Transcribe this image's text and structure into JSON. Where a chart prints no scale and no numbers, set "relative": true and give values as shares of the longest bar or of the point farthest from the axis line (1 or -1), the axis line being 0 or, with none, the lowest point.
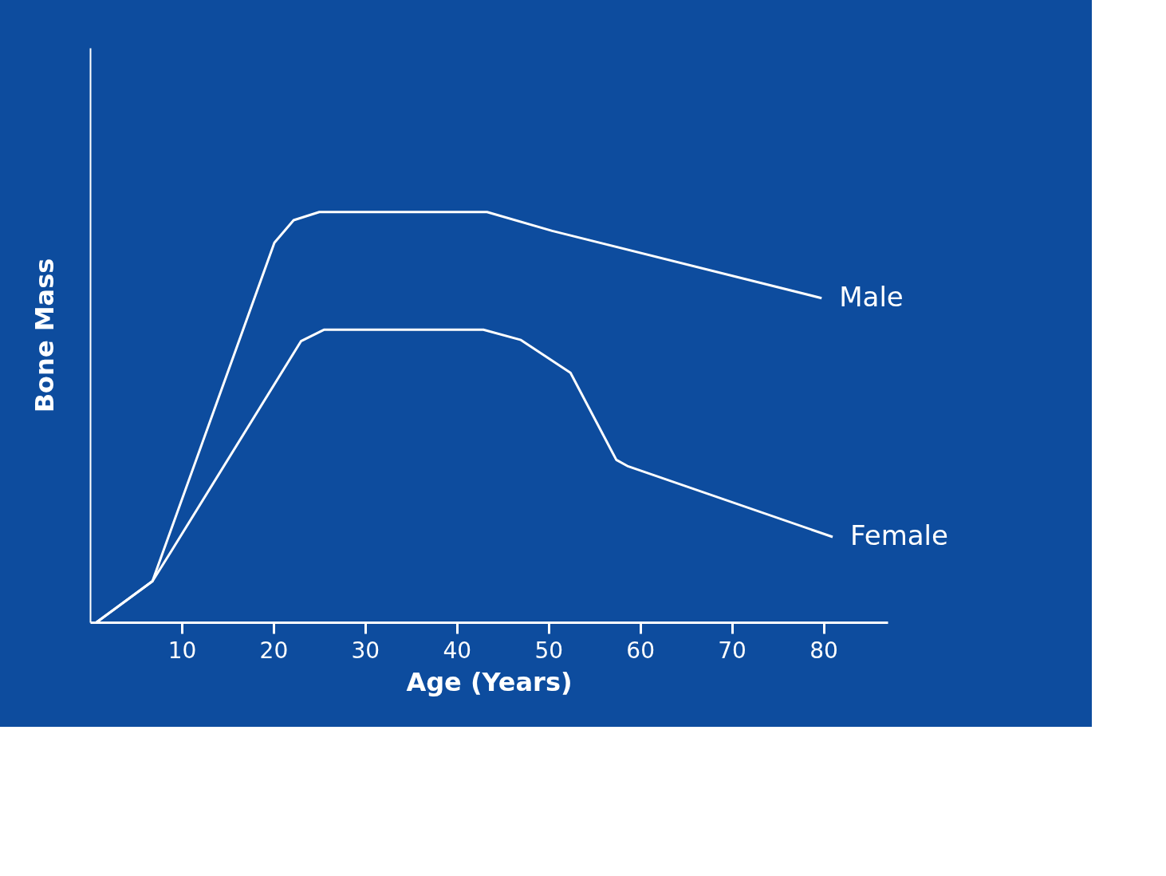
{
  "chart_data": {
    "type": "line",
    "relative": true,
    "xlabel": "Age (Years)",
    "ylabel": "Bone Mass",
    "xlim": [
      0,
      87
    ],
    "xticks": [
      10,
      20,
      30,
      40,
      50,
      60,
      70,
      80
    ],
    "grid": false,
    "legend": false,
    "marker": "none",
    "line_style": "solid",
    "series": [
      {
        "name": "Male",
        "color": "#ffffff",
        "x": [
          0.7,
          6.8,
          20.1,
          22.2,
          25,
          43.3,
          50.4,
          79.8
        ],
        "values": [
          0,
          0.1,
          0.925,
          0.98,
          1.0,
          1.0,
          0.954,
          0.79
        ]
      },
      {
        "name": "Female",
        "color": "#ffffff",
        "x": [
          0.7,
          6.8,
          8.9,
          23,
          25.5,
          42.9,
          47,
          52.4,
          57.4,
          58.6,
          81
        ],
        "values": [
          0,
          0.1,
          0.175,
          0.685,
          0.713,
          0.713,
          0.688,
          0.608,
          0.396,
          0.381,
          0.208
        ]
      }
    ]
  }
}
